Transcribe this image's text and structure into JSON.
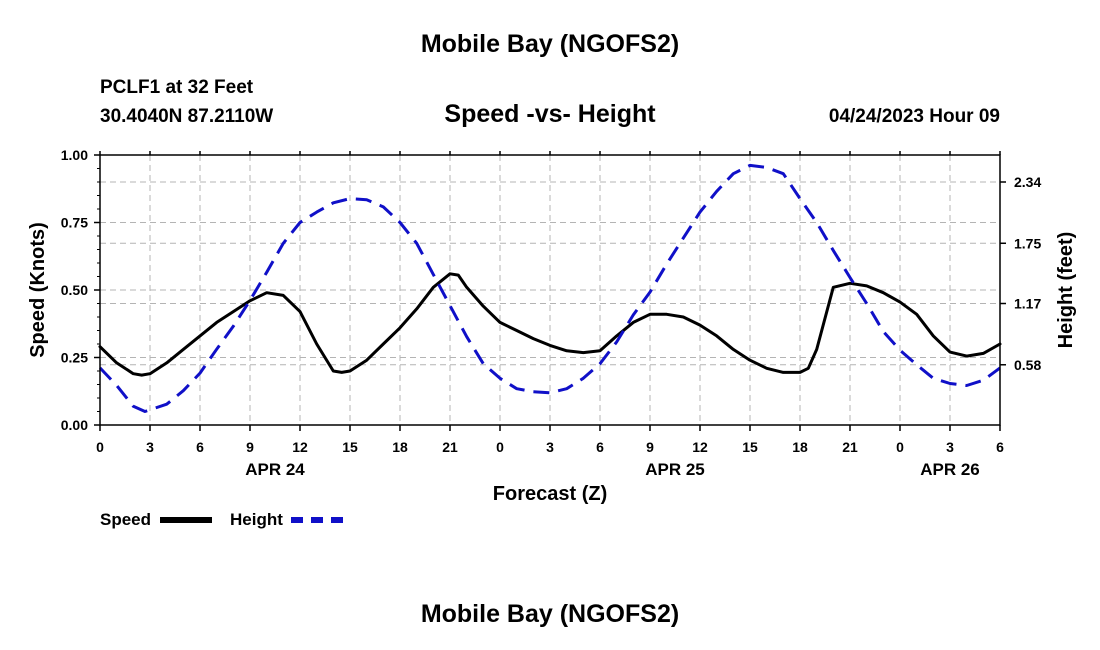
{
  "header": {
    "title": "Mobile Bay (NGOFS2)",
    "station": "PCLF1 at 32 Feet",
    "coords": "30.4040N  87.2110W",
    "subtitle": "Speed -vs- Height",
    "datetime": "04/24/2023 Hour 09"
  },
  "footer": {
    "title": "Mobile Bay (NGOFS2)"
  },
  "legend": {
    "speed_label": "Speed",
    "height_label": "Height"
  },
  "colors": {
    "speed": "#000000",
    "height": "#1010c8",
    "grid": "#b4b4b4"
  },
  "chart_data": {
    "type": "line",
    "xlabel": "Forecast (Z)",
    "ylabel_left": "Speed (Knots)",
    "ylabel_right": "Height (feet)",
    "xlim": [
      0,
      54
    ],
    "ylim_left": [
      0,
      1
    ],
    "ylim_right": [
      0,
      2.6
    ],
    "x_ticks": [
      0,
      3,
      6,
      9,
      12,
      15,
      18,
      21,
      24,
      27,
      30,
      33,
      36,
      39,
      42,
      45,
      48,
      51,
      54
    ],
    "x_tick_labels": [
      "0",
      "3",
      "6",
      "9",
      "12",
      "15",
      "18",
      "21",
      "0",
      "3",
      "6",
      "9",
      "12",
      "15",
      "18",
      "21",
      "0",
      "3",
      "6"
    ],
    "date_labels": [
      {
        "x": 10.5,
        "label": "APR 24"
      },
      {
        "x": 34.5,
        "label": "APR 25"
      },
      {
        "x": 51,
        "label": "APR 26"
      }
    ],
    "y_left_ticks": [
      0,
      0.25,
      0.5,
      0.75,
      1.0
    ],
    "y_left_tick_labels": [
      "0.00",
      "0.25",
      "0.50",
      "0.75",
      "1.00"
    ],
    "y_right_ticks": [
      0.58,
      1.17,
      1.75,
      2.34
    ],
    "y_right_tick_labels": [
      "0.58",
      "1.17",
      "1.75",
      "2.34"
    ],
    "grid": true,
    "series": [
      {
        "name": "Speed",
        "axis": "left",
        "style": "solid",
        "x": [
          0,
          1,
          2,
          2.5,
          3,
          4,
          5,
          6,
          7,
          8,
          9,
          10,
          11,
          12,
          13,
          14,
          14.5,
          15,
          16,
          17,
          18,
          19,
          20,
          21,
          21.5,
          22,
          23,
          24,
          25,
          26,
          27,
          28,
          29,
          30,
          31,
          32,
          33,
          34,
          35,
          36,
          37,
          38,
          39,
          40,
          41,
          42,
          42.5,
          43,
          44,
          45,
          46,
          47,
          48,
          49,
          50,
          51,
          52,
          53,
          54
        ],
        "values": [
          0.29,
          0.23,
          0.19,
          0.185,
          0.19,
          0.23,
          0.28,
          0.33,
          0.38,
          0.42,
          0.46,
          0.49,
          0.48,
          0.42,
          0.3,
          0.2,
          0.195,
          0.2,
          0.24,
          0.3,
          0.36,
          0.43,
          0.51,
          0.56,
          0.555,
          0.51,
          0.44,
          0.38,
          0.35,
          0.32,
          0.295,
          0.275,
          0.268,
          0.275,
          0.33,
          0.38,
          0.41,
          0.41,
          0.4,
          0.37,
          0.33,
          0.28,
          0.24,
          0.21,
          0.195,
          0.195,
          0.21,
          0.28,
          0.51,
          0.525,
          0.515,
          0.49,
          0.455,
          0.41,
          0.33,
          0.27,
          0.255,
          0.265,
          0.3
        ]
      },
      {
        "name": "Height",
        "axis": "right",
        "style": "dashed",
        "x": [
          0,
          1,
          2,
          2.7,
          4,
          5,
          6,
          7,
          8,
          9,
          10,
          11,
          12,
          13,
          14,
          15,
          16,
          17,
          18,
          19,
          20,
          21,
          22,
          23,
          24,
          25,
          26,
          27,
          28,
          29,
          30,
          31,
          32,
          33,
          34,
          35,
          36,
          37,
          38,
          39,
          40,
          41,
          42,
          43,
          44,
          45,
          46,
          47,
          48,
          49,
          50,
          51,
          52,
          53,
          54
        ],
        "values": [
          0.55,
          0.38,
          0.18,
          0.13,
          0.2,
          0.33,
          0.5,
          0.73,
          0.95,
          1.2,
          1.47,
          1.75,
          1.95,
          2.05,
          2.14,
          2.18,
          2.17,
          2.1,
          1.95,
          1.75,
          1.45,
          1.15,
          0.85,
          0.59,
          0.45,
          0.35,
          0.32,
          0.31,
          0.35,
          0.45,
          0.59,
          0.8,
          1.06,
          1.28,
          1.55,
          1.8,
          2.05,
          2.25,
          2.42,
          2.5,
          2.48,
          2.42,
          2.18,
          1.95,
          1.68,
          1.42,
          1.17,
          0.9,
          0.72,
          0.58,
          0.45,
          0.4,
          0.38,
          0.43,
          0.55
        ]
      }
    ]
  }
}
